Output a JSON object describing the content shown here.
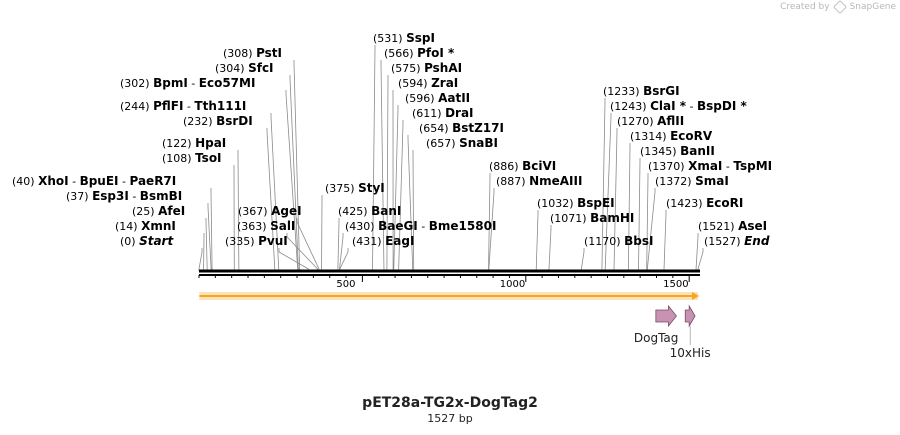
{
  "credit": {
    "prefix": "Created by",
    "brand": "SnapGene"
  },
  "sequence": {
    "name": "pET28a-TG2x-DogTag2",
    "length_label": "1527 bp",
    "length": 1527
  },
  "ruler": {
    "ticks": [
      {
        "pos": 500,
        "label": "500"
      },
      {
        "pos": 1000,
        "label": "1000"
      },
      {
        "pos": 1500,
        "label": "1500"
      }
    ]
  },
  "features": [
    {
      "name": "DogTag",
      "start": 1398,
      "end": 1461,
      "color": "#c893b3"
    },
    {
      "name": "10xHis",
      "start": 1488,
      "end": 1518,
      "color": "#c893b3"
    }
  ],
  "orf": {
    "start": 1,
    "end": 1527,
    "color": "#f5a623"
  },
  "sites": [
    {
      "pos": "(0)",
      "names": [
        "Start"
      ],
      "italic": true,
      "site": 0,
      "fit": 0
    },
    {
      "pos": "(14)",
      "names": [
        "XmnI"
      ],
      "site": 14
    },
    {
      "pos": "(25)",
      "names": [
        "AfeI"
      ],
      "site": 25
    },
    {
      "pos": "(37)",
      "names": [
        "Esp3I",
        "BsmBI"
      ],
      "site": 37
    },
    {
      "pos": "(40)",
      "names": [
        "XhoI",
        "BpuEI",
        "PaeR7I"
      ],
      "site": 40
    },
    {
      "pos": "(108)",
      "names": [
        "TsoI"
      ],
      "site": 108
    },
    {
      "pos": "(122)",
      "names": [
        "HpaI"
      ],
      "site": 122
    },
    {
      "pos": "(232)",
      "names": [
        "BsrDI"
      ],
      "site": 232
    },
    {
      "pos": "(244)",
      "names": [
        "PflFI",
        "Tth111I"
      ],
      "site": 244
    },
    {
      "pos": "(302)",
      "names": [
        "BpmI",
        "Eco57MI"
      ],
      "site": 302
    },
    {
      "pos": "(304)",
      "names": [
        "SfcI"
      ],
      "site": 304
    },
    {
      "pos": "(308)",
      "names": [
        "PstI"
      ],
      "site": 308
    },
    {
      "pos": "(335)",
      "names": [
        "PvuI"
      ],
      "site": 335
    },
    {
      "pos": "(363)",
      "names": [
        "SalI"
      ],
      "site": 363
    },
    {
      "pos": "(367)",
      "names": [
        "AgeI"
      ],
      "site": 367
    },
    {
      "pos": "(375)",
      "names": [
        "StyI"
      ],
      "site": 375
    },
    {
      "pos": "(425)",
      "names": [
        "BanI"
      ],
      "site": 425
    },
    {
      "pos": "(430)",
      "names": [
        "BaeGI",
        "Bme1580I"
      ],
      "site": 430
    },
    {
      "pos": "(431)",
      "names": [
        "EagI"
      ],
      "site": 431
    },
    {
      "pos": "(531)",
      "names": [
        "SspI"
      ],
      "site": 531
    },
    {
      "pos": "(566)",
      "names": [
        "PfoI *"
      ],
      "site": 566
    },
    {
      "pos": "(575)",
      "names": [
        "PshAI"
      ],
      "site": 575
    },
    {
      "pos": "(594)",
      "names": [
        "ZraI"
      ],
      "site": 594
    },
    {
      "pos": "(596)",
      "names": [
        "AatII"
      ],
      "site": 596
    },
    {
      "pos": "(611)",
      "names": [
        "DraI"
      ],
      "site": 611
    },
    {
      "pos": "(654)",
      "names": [
        "BstZ17I"
      ],
      "site": 654
    },
    {
      "pos": "(657)",
      "names": [
        "SnaBI"
      ],
      "site": 657
    },
    {
      "pos": "(886)",
      "names": [
        "BciVI"
      ],
      "site": 886
    },
    {
      "pos": "(887)",
      "names": [
        "NmeAIII"
      ],
      "site": 887
    },
    {
      "pos": "(1032)",
      "names": [
        "BspEI"
      ],
      "site": 1032
    },
    {
      "pos": "(1071)",
      "names": [
        "BamHI"
      ],
      "site": 1071
    },
    {
      "pos": "(1170)",
      "names": [
        "BbsI"
      ],
      "site": 1170
    },
    {
      "pos": "(1233)",
      "names": [
        "BsrGI"
      ],
      "site": 1233
    },
    {
      "pos": "(1243)",
      "names": [
        "ClaI *",
        "BspDI *"
      ],
      "site": 1243
    },
    {
      "pos": "(1270)",
      "names": [
        "AflII"
      ],
      "site": 1270
    },
    {
      "pos": "(1314)",
      "names": [
        "EcoRV"
      ],
      "site": 1314
    },
    {
      "pos": "(1345)",
      "names": [
        "BanII"
      ],
      "site": 1345
    },
    {
      "pos": "(1370)",
      "names": [
        "XmaI",
        "TspMI"
      ],
      "site": 1370
    },
    {
      "pos": "(1372)",
      "names": [
        "SmaI"
      ],
      "site": 1372
    },
    {
      "pos": "(1423)",
      "names": [
        "EcoRI"
      ],
      "site": 1423
    },
    {
      "pos": "(1521)",
      "names": [
        "AseI"
      ],
      "site": 1521
    },
    {
      "pos": "(1527)",
      "names": [
        "End"
      ],
      "italic": true,
      "site": 1527
    }
  ]
}
